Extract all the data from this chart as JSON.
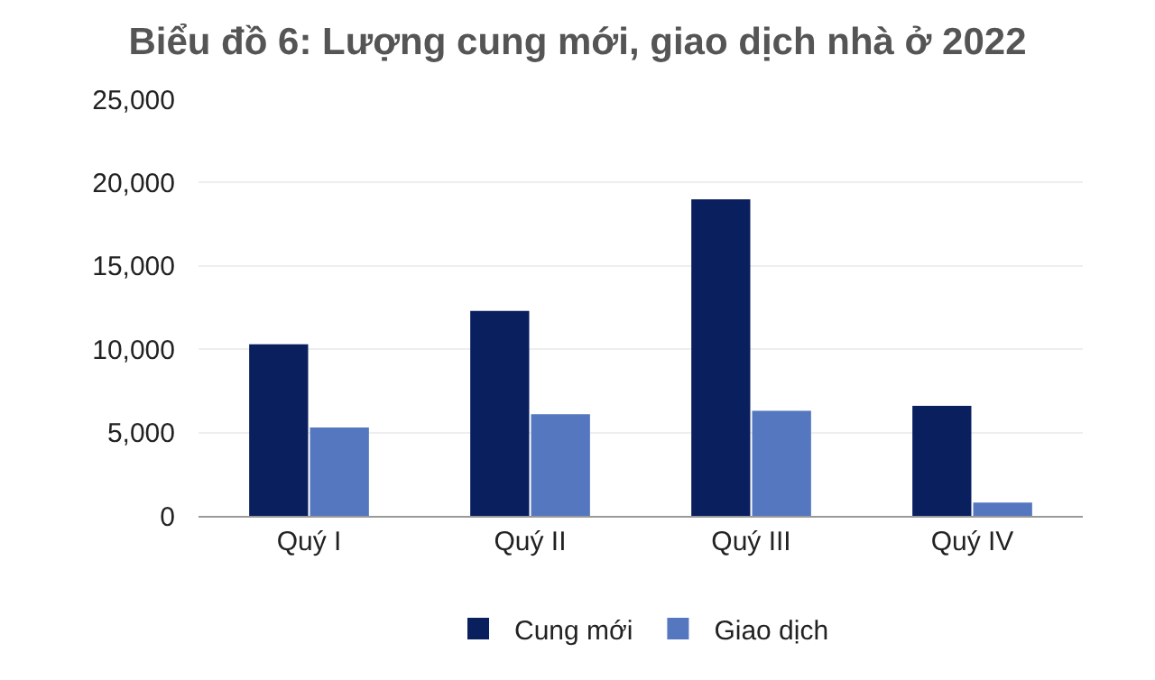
{
  "chart_data": {
    "type": "bar",
    "title": "Biểu đồ 6: Lượng cung mới, giao dịch nhà ở 2022",
    "categories": [
      "Quý I",
      "Quý II",
      "Quý III",
      "Quý IV"
    ],
    "series": [
      {
        "name": "Cung mới",
        "color": "#0a1f5e",
        "values": [
          10300,
          12300,
          19000,
          6600
        ]
      },
      {
        "name": "Giao dịch",
        "color": "#5577c0",
        "values": [
          5300,
          6100,
          6300,
          800
        ]
      }
    ],
    "ylim": [
      0,
      25000
    ],
    "yticks": [
      {
        "value": 0,
        "label": "0"
      },
      {
        "value": 5000,
        "label": "5,000"
      },
      {
        "value": 10000,
        "label": "10,000"
      },
      {
        "value": 15000,
        "label": "15,000"
      },
      {
        "value": 20000,
        "label": "20,000"
      },
      {
        "value": 25000,
        "label": "25,000"
      }
    ],
    "grid": "y",
    "legend": "bottom"
  }
}
